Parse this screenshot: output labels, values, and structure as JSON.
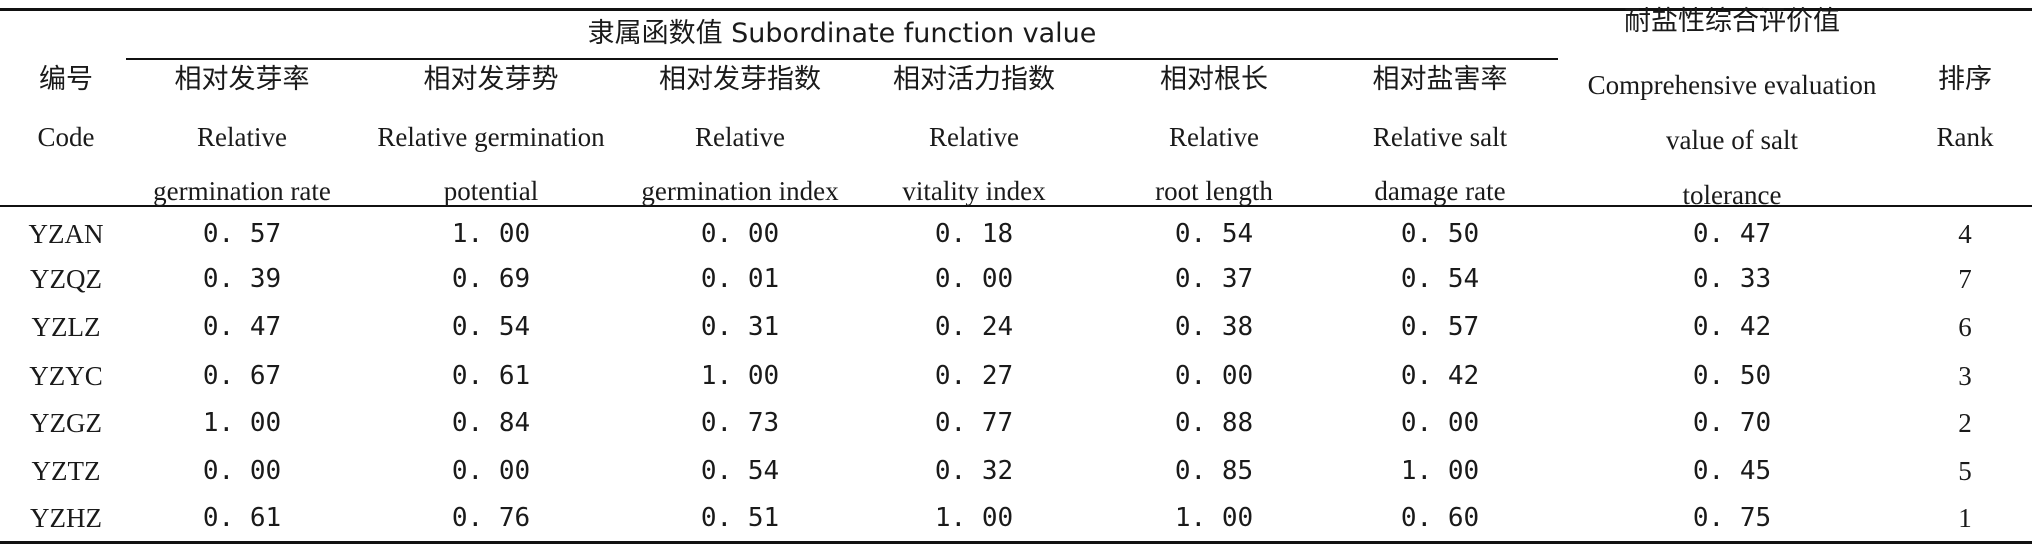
{
  "table": {
    "group_header": "隶属函数值 Subordinate function value",
    "columns": [
      {
        "cn": "编号",
        "en": [
          "Code"
        ]
      },
      {
        "cn": "相对发芽率",
        "en": [
          "Relative",
          "germination rate"
        ]
      },
      {
        "cn": "相对发芽势",
        "en": [
          "Relative germination",
          "potential"
        ]
      },
      {
        "cn": "相对发芽指数",
        "en": [
          "Relative",
          "germination index"
        ]
      },
      {
        "cn": "相对活力指数",
        "en": [
          "Relative",
          "vitality index"
        ]
      },
      {
        "cn": "相对根长",
        "en": [
          "Relative",
          "root length"
        ]
      },
      {
        "cn": "相对盐害率",
        "en": [
          "Relative salt",
          "damage rate"
        ]
      },
      {
        "cn": "耐盐性综合评价值",
        "en": [
          "Comprehensive evaluation",
          "value of salt",
          "tolerance"
        ]
      },
      {
        "cn": "排序",
        "en": [
          "Rank"
        ]
      }
    ],
    "rows": [
      [
        "YZAN",
        "0. 57",
        "1. 00",
        "0. 00",
        "0. 18",
        "0. 54",
        "0. 50",
        "0. 47",
        "4"
      ],
      [
        "YZQZ",
        "0. 39",
        "0. 69",
        "0. 01",
        "0. 00",
        "0. 37",
        "0. 54",
        "0. 33",
        "7"
      ],
      [
        "YZLZ",
        "0. 47",
        "0. 54",
        "0. 31",
        "0. 24",
        "0. 38",
        "0. 57",
        "0. 42",
        "6"
      ],
      [
        "YZYC",
        "0. 67",
        "0. 61",
        "1. 00",
        "0. 27",
        "0. 00",
        "0. 42",
        "0. 50",
        "3"
      ],
      [
        "YZGZ",
        "1. 00",
        "0. 84",
        "0. 73",
        "0. 77",
        "0. 88",
        "0. 00",
        "0. 70",
        "2"
      ],
      [
        "YZTZ",
        "0. 00",
        "0. 00",
        "0. 54",
        "0. 32",
        "0. 85",
        "1. 00",
        "0. 45",
        "5"
      ],
      [
        "YZHZ",
        "0. 61",
        "0. 76",
        "0. 51",
        "1. 00",
        "1. 00",
        "0. 60",
        "0. 75",
        "1"
      ]
    ]
  }
}
